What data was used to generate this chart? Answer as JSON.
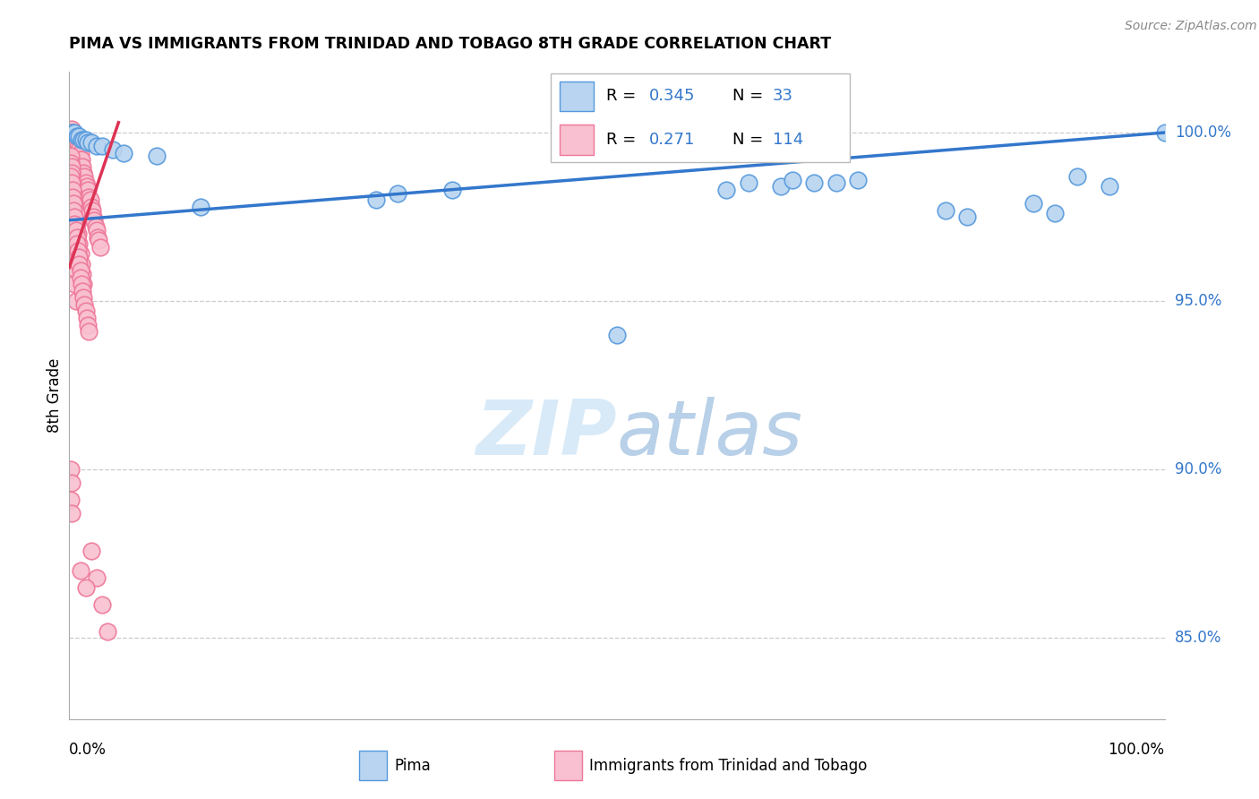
{
  "title": "PIMA VS IMMIGRANTS FROM TRINIDAD AND TOBAGO 8TH GRADE CORRELATION CHART",
  "source": "Source: ZipAtlas.com",
  "ylabel": "8th Grade",
  "yticks": [
    0.85,
    0.9,
    0.95,
    1.0
  ],
  "ytick_labels": [
    "85.0%",
    "90.0%",
    "95.0%",
    "100.0%"
  ],
  "xmin": 0.0,
  "xmax": 1.0,
  "ymin": 0.826,
  "ymax": 1.018,
  "pima_color": "#b8d4f0",
  "pima_edge": "#5599dd",
  "trin_color": "#f8c0d0",
  "trin_edge": "#ee7799",
  "blue_line": "#3377cc",
  "red_line": "#dd3355",
  "watermark_color": "#d8eaf8",
  "pima_x": [
    0.003,
    0.005,
    0.007,
    0.009,
    0.011,
    0.013,
    0.015,
    0.017,
    0.02,
    0.025,
    0.03,
    0.04,
    0.05,
    0.08,
    0.12,
    0.28,
    0.3,
    0.35,
    0.5,
    0.6,
    0.65,
    0.68,
    0.7,
    0.72,
    0.8,
    0.82,
    0.88,
    0.9,
    0.92,
    0.95,
    1.0,
    0.62,
    0.66
  ],
  "pima_y": [
    1.0,
    1.0,
    0.999,
    0.999,
    0.998,
    0.998,
    0.998,
    0.997,
    0.997,
    0.996,
    0.996,
    0.995,
    0.994,
    0.993,
    0.978,
    0.98,
    0.982,
    0.983,
    0.94,
    0.983,
    0.984,
    0.985,
    0.985,
    0.986,
    0.977,
    0.975,
    0.979,
    0.976,
    0.987,
    0.984,
    1.0,
    0.985,
    0.986
  ],
  "trin_x": [
    0.001,
    0.001,
    0.001,
    0.001,
    0.001,
    0.002,
    0.002,
    0.002,
    0.002,
    0.002,
    0.002,
    0.003,
    0.003,
    0.003,
    0.003,
    0.003,
    0.003,
    0.004,
    0.004,
    0.004,
    0.004,
    0.005,
    0.005,
    0.005,
    0.005,
    0.006,
    0.006,
    0.006,
    0.007,
    0.007,
    0.007,
    0.008,
    0.008,
    0.008,
    0.009,
    0.009,
    0.01,
    0.01,
    0.01,
    0.011,
    0.012,
    0.013,
    0.014,
    0.015,
    0.016,
    0.017,
    0.018,
    0.019,
    0.02,
    0.021,
    0.022,
    0.023,
    0.024,
    0.025,
    0.026,
    0.027,
    0.028,
    0.002,
    0.003,
    0.004,
    0.005,
    0.006,
    0.007,
    0.008,
    0.009,
    0.01,
    0.011,
    0.012,
    0.013,
    0.001,
    0.002,
    0.003,
    0.003,
    0.004,
    0.005,
    0.006,
    0.001,
    0.001,
    0.002,
    0.002,
    0.001,
    0.002,
    0.003,
    0.003,
    0.004,
    0.004,
    0.005,
    0.005,
    0.006,
    0.007,
    0.007,
    0.008,
    0.009,
    0.009,
    0.01,
    0.01,
    0.011,
    0.012,
    0.013,
    0.014,
    0.015,
    0.016,
    0.017,
    0.018,
    0.001,
    0.002,
    0.001,
    0.002,
    0.02,
    0.025,
    0.03,
    0.035,
    0.01,
    0.015
  ],
  "trin_y": [
    1.0,
    0.999,
    0.998,
    0.997,
    0.995,
    1.001,
    1.0,
    0.999,
    0.997,
    0.995,
    0.993,
    1.0,
    0.999,
    0.998,
    0.996,
    0.994,
    0.992,
    0.999,
    0.997,
    0.995,
    0.993,
    0.999,
    0.997,
    0.995,
    0.992,
    0.998,
    0.996,
    0.994,
    0.997,
    0.995,
    0.993,
    0.996,
    0.994,
    0.992,
    0.995,
    0.993,
    0.994,
    0.992,
    0.99,
    0.992,
    0.99,
    0.988,
    0.987,
    0.985,
    0.984,
    0.983,
    0.981,
    0.98,
    0.978,
    0.977,
    0.975,
    0.974,
    0.972,
    0.971,
    0.969,
    0.968,
    0.966,
    0.988,
    0.985,
    0.982,
    0.979,
    0.976,
    0.973,
    0.97,
    0.967,
    0.964,
    0.961,
    0.958,
    0.955,
    0.98,
    0.975,
    0.97,
    0.965,
    0.96,
    0.955,
    0.95,
    0.993,
    0.991,
    0.99,
    0.988,
    0.987,
    0.985,
    0.983,
    0.981,
    0.979,
    0.977,
    0.975,
    0.973,
    0.971,
    0.969,
    0.967,
    0.965,
    0.963,
    0.961,
    0.959,
    0.957,
    0.955,
    0.953,
    0.951,
    0.949,
    0.947,
    0.945,
    0.943,
    0.941,
    0.9,
    0.896,
    0.891,
    0.887,
    0.876,
    0.868,
    0.86,
    0.852,
    0.87,
    0.865
  ],
  "pima_trend_x": [
    0.0,
    1.0
  ],
  "pima_trend_y": [
    0.974,
    1.0
  ],
  "trin_trend_x": [
    0.0,
    0.045
  ],
  "trin_trend_y": [
    0.96,
    1.003
  ]
}
